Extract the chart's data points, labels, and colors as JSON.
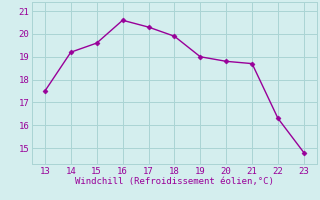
{
  "x": [
    13,
    14,
    15,
    16,
    17,
    18,
    19,
    20,
    21,
    22,
    23
  ],
  "y": [
    17.5,
    19.2,
    19.6,
    20.6,
    20.3,
    19.9,
    19.0,
    18.8,
    18.7,
    16.3,
    14.8
  ],
  "line_color": "#990099",
  "marker": "D",
  "marker_size": 2.5,
  "linewidth": 1.0,
  "xlabel": "Windchill (Refroidissement éolien,°C)",
  "xlabel_color": "#990099",
  "xlabel_fontsize": 6.5,
  "bg_color": "#d4eeee",
  "grid_color": "#aad4d4",
  "tick_color": "#990099",
  "tick_labelsize": 6.5,
  "xlim": [
    12.5,
    23.5
  ],
  "ylim": [
    14.3,
    21.4
  ],
  "yticks": [
    15,
    16,
    17,
    18,
    19,
    20,
    21
  ],
  "xticks": [
    13,
    14,
    15,
    16,
    17,
    18,
    19,
    20,
    21,
    22,
    23
  ]
}
